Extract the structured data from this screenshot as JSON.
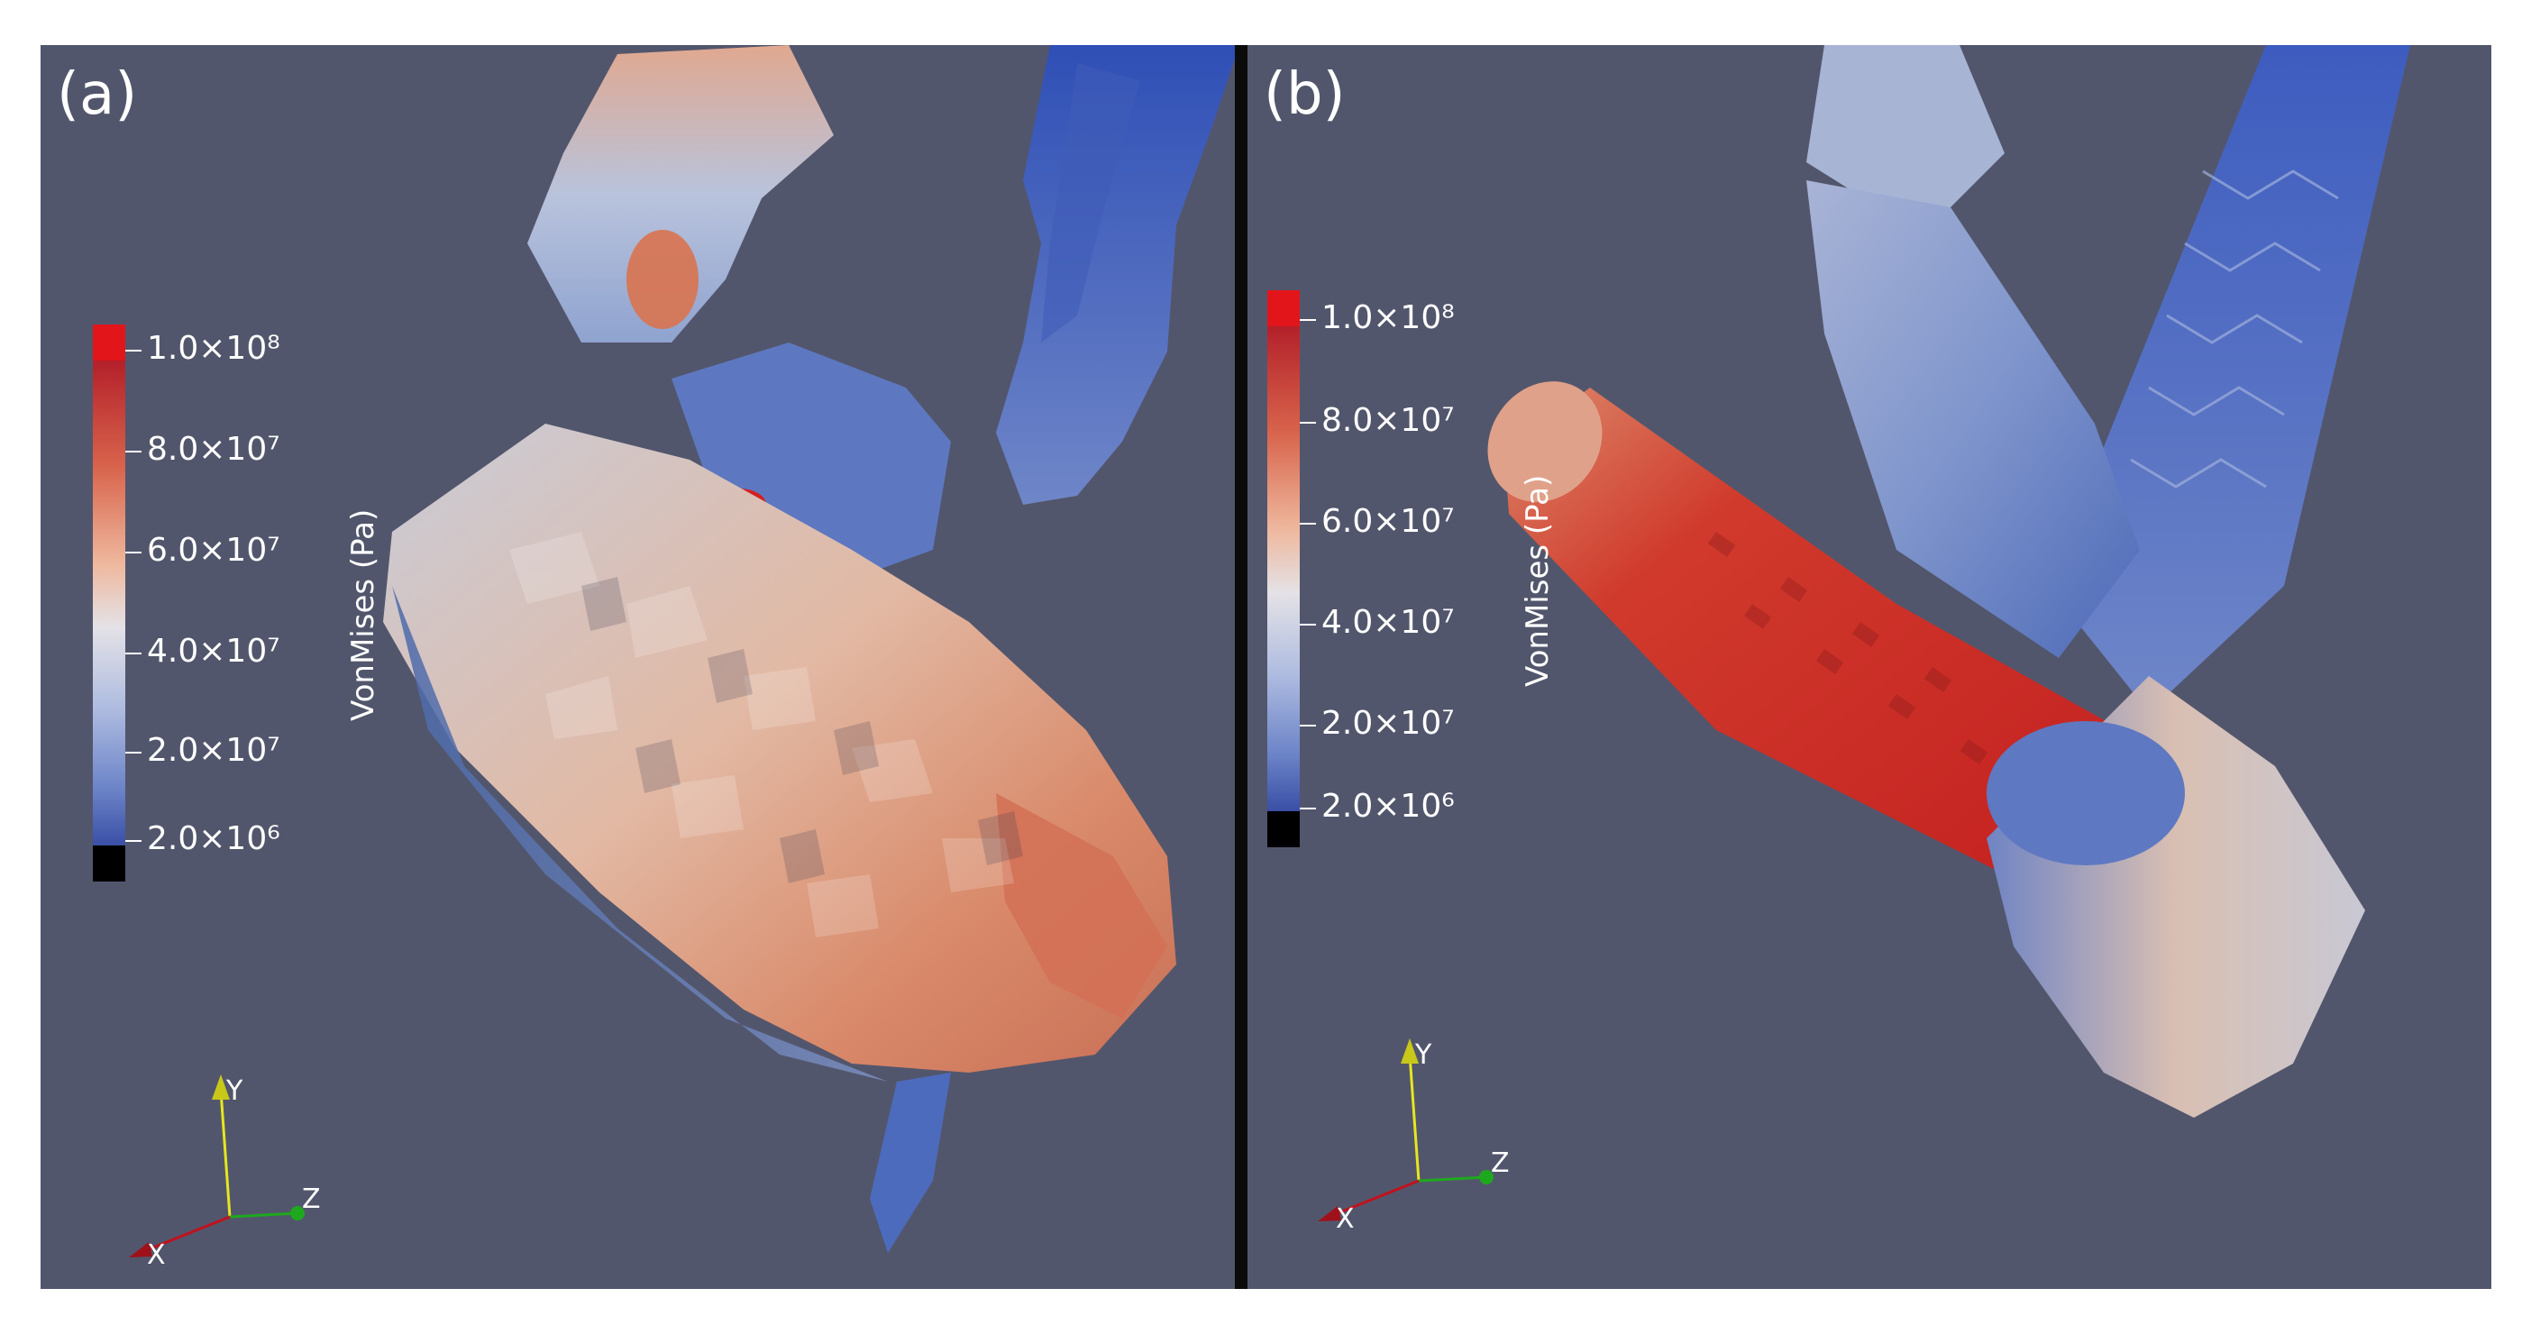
{
  "panels": [
    {
      "label": "(a)",
      "colorbar": {
        "title": "VonMises (Pa)",
        "ticks": [
          "1.0×10⁸",
          "8.0×10⁷",
          "6.0×10⁷",
          "4.0×10⁷",
          "2.0×10⁷",
          "2.0×10⁶"
        ]
      },
      "axes": {
        "x": "X",
        "y": "Y",
        "z": "Z"
      }
    },
    {
      "label": "(b)",
      "colorbar": {
        "title": "VonMises (Pa)",
        "ticks": [
          "1.0×10⁸",
          "8.0×10⁷",
          "6.0×10⁷",
          "4.0×10⁷",
          "2.0×10⁷",
          "2.0×10⁶"
        ]
      },
      "axes": {
        "x": "X",
        "y": "Y",
        "z": "Z"
      }
    }
  ],
  "colors": {
    "background": "#52566c",
    "divider": "#0b0b0b",
    "stress_high": "#d42020",
    "stress_mid": "#dcdcdc",
    "stress_low": "#3b55b0",
    "below_range": "#000000",
    "axis_x": "#c0121e",
    "axis_y": "#e6e61e",
    "axis_z": "#1ea81e"
  }
}
